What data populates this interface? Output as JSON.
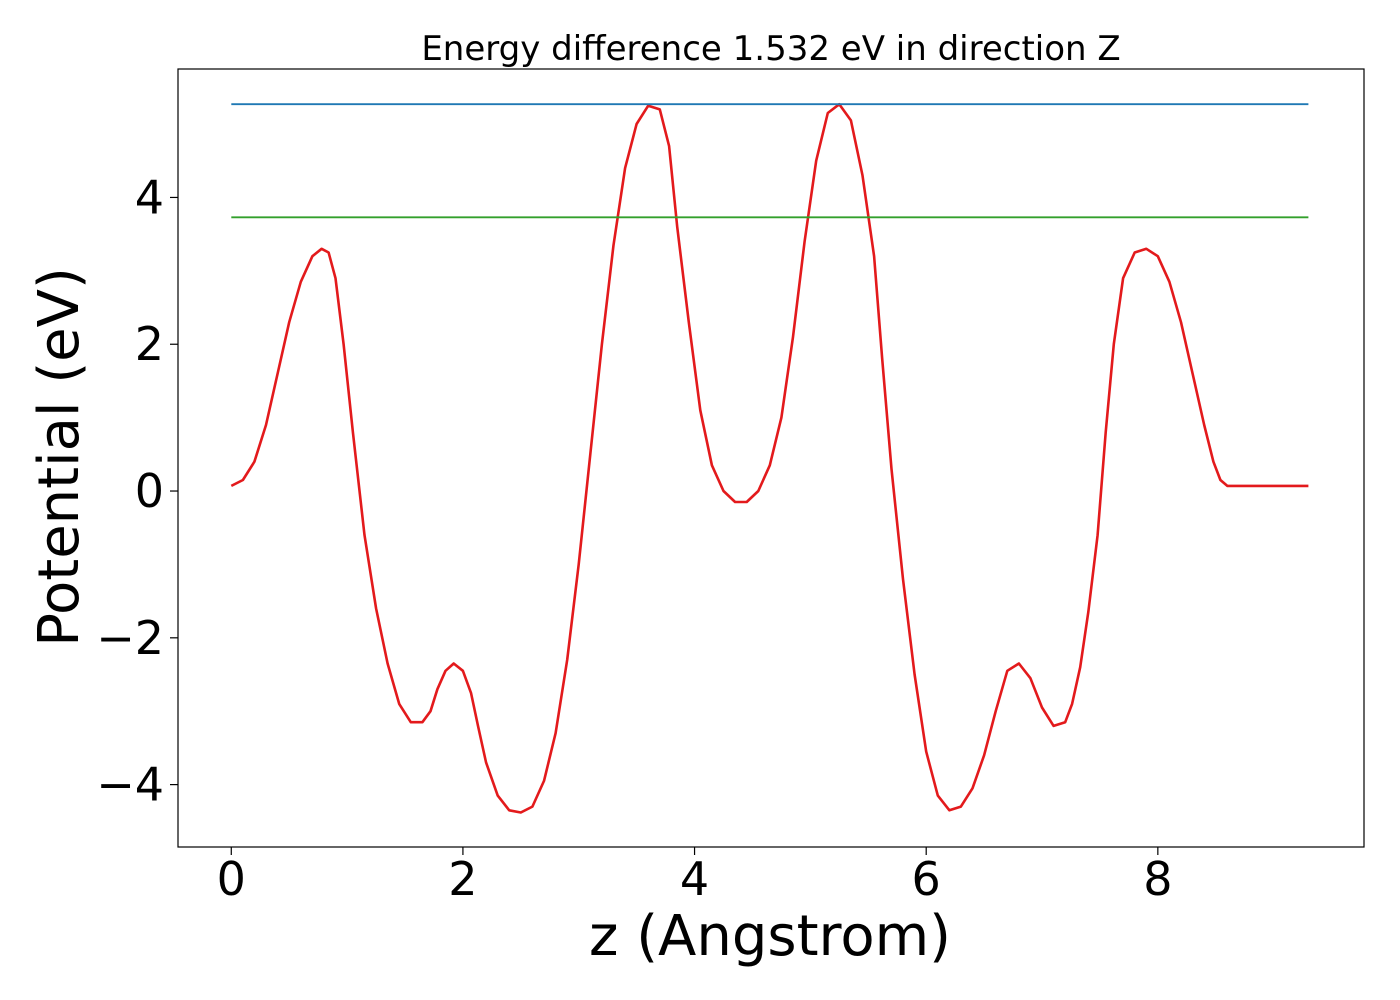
{
  "chart_data": {
    "type": "line",
    "title": "Energy difference 1.532 eV in direction Z",
    "xlabel": "z (Angstrom)",
    "ylabel": "Potential (eV)",
    "xlim": [
      -0.46,
      9.78
    ],
    "ylim": [
      -4.85,
      5.75
    ],
    "xticks": [
      0,
      2,
      4,
      6,
      8
    ],
    "yticks": [
      -4,
      -2,
      0,
      2,
      4
    ],
    "xtick_labels": [
      "0",
      "2",
      "4",
      "6",
      "8"
    ],
    "ytick_labels": [
      "−4",
      "−2",
      "0",
      "2",
      "4"
    ],
    "grid": false,
    "colors": {
      "potential": "#e31a1c",
      "upper_level": "#1f78b4",
      "lower_level": "#33a02c"
    },
    "series": [
      {
        "color": "#e31a1c",
        "x": [
          0.0,
          0.1,
          0.2,
          0.3,
          0.4,
          0.5,
          0.6,
          0.7,
          0.78,
          0.84,
          0.9,
          0.97,
          1.05,
          1.15,
          1.25,
          1.35,
          1.45,
          1.55,
          1.65,
          1.72,
          1.78,
          1.85,
          1.92,
          2.0,
          2.07,
          2.13,
          2.2,
          2.3,
          2.4,
          2.5,
          2.6,
          2.7,
          2.8,
          2.9,
          3.0,
          3.1,
          3.2,
          3.3,
          3.4,
          3.5,
          3.6,
          3.7,
          3.78,
          3.85,
          3.95,
          4.05,
          4.15,
          4.25,
          4.35,
          4.45,
          4.55,
          4.65,
          4.75,
          4.85,
          4.95,
          5.05,
          5.15,
          5.25,
          5.35,
          5.45,
          5.55,
          5.62,
          5.7,
          5.8,
          5.9,
          6.0,
          6.1,
          6.2,
          6.3,
          6.4,
          6.5,
          6.6,
          6.7,
          6.8,
          6.9,
          7.0,
          7.1,
          7.2,
          7.26,
          7.33,
          7.4,
          7.48,
          7.55,
          7.62,
          7.7,
          7.8,
          7.9,
          8.0,
          8.1,
          8.2,
          8.3,
          8.4,
          8.48,
          8.54,
          8.6,
          8.7,
          8.8,
          8.9,
          9.0,
          9.1,
          9.2,
          9.3
        ],
        "y": [
          0.07,
          0.15,
          0.4,
          0.9,
          1.6,
          2.3,
          2.85,
          3.2,
          3.3,
          3.25,
          2.9,
          2.0,
          0.8,
          -0.6,
          -1.6,
          -2.35,
          -2.9,
          -3.15,
          -3.15,
          -3.0,
          -2.7,
          -2.45,
          -2.35,
          -2.45,
          -2.75,
          -3.2,
          -3.7,
          -4.15,
          -4.35,
          -4.38,
          -4.3,
          -3.95,
          -3.3,
          -2.3,
          -1.0,
          0.5,
          2.0,
          3.35,
          4.4,
          5.0,
          5.25,
          5.2,
          4.7,
          3.6,
          2.3,
          1.1,
          0.35,
          0.0,
          -0.15,
          -0.15,
          0.0,
          0.35,
          1.0,
          2.1,
          3.4,
          4.5,
          5.15,
          5.27,
          5.05,
          4.3,
          3.2,
          1.8,
          0.3,
          -1.2,
          -2.5,
          -3.55,
          -4.15,
          -4.35,
          -4.3,
          -4.05,
          -3.6,
          -3.0,
          -2.45,
          -2.35,
          -2.55,
          -2.95,
          -3.2,
          -3.15,
          -2.9,
          -2.4,
          -1.65,
          -0.6,
          0.8,
          2.0,
          2.9,
          3.25,
          3.3,
          3.2,
          2.85,
          2.3,
          1.6,
          0.9,
          0.4,
          0.15,
          0.07,
          0.07,
          0.07,
          0.07,
          0.07,
          0.07,
          0.07,
          0.07
        ]
      },
      {
        "color": "#1f78b4",
        "x": [
          0.0,
          9.3
        ],
        "y": [
          5.27,
          5.27
        ]
      },
      {
        "color": "#33a02c",
        "x": [
          0.0,
          9.3
        ],
        "y": [
          3.73,
          3.73
        ]
      }
    ]
  }
}
